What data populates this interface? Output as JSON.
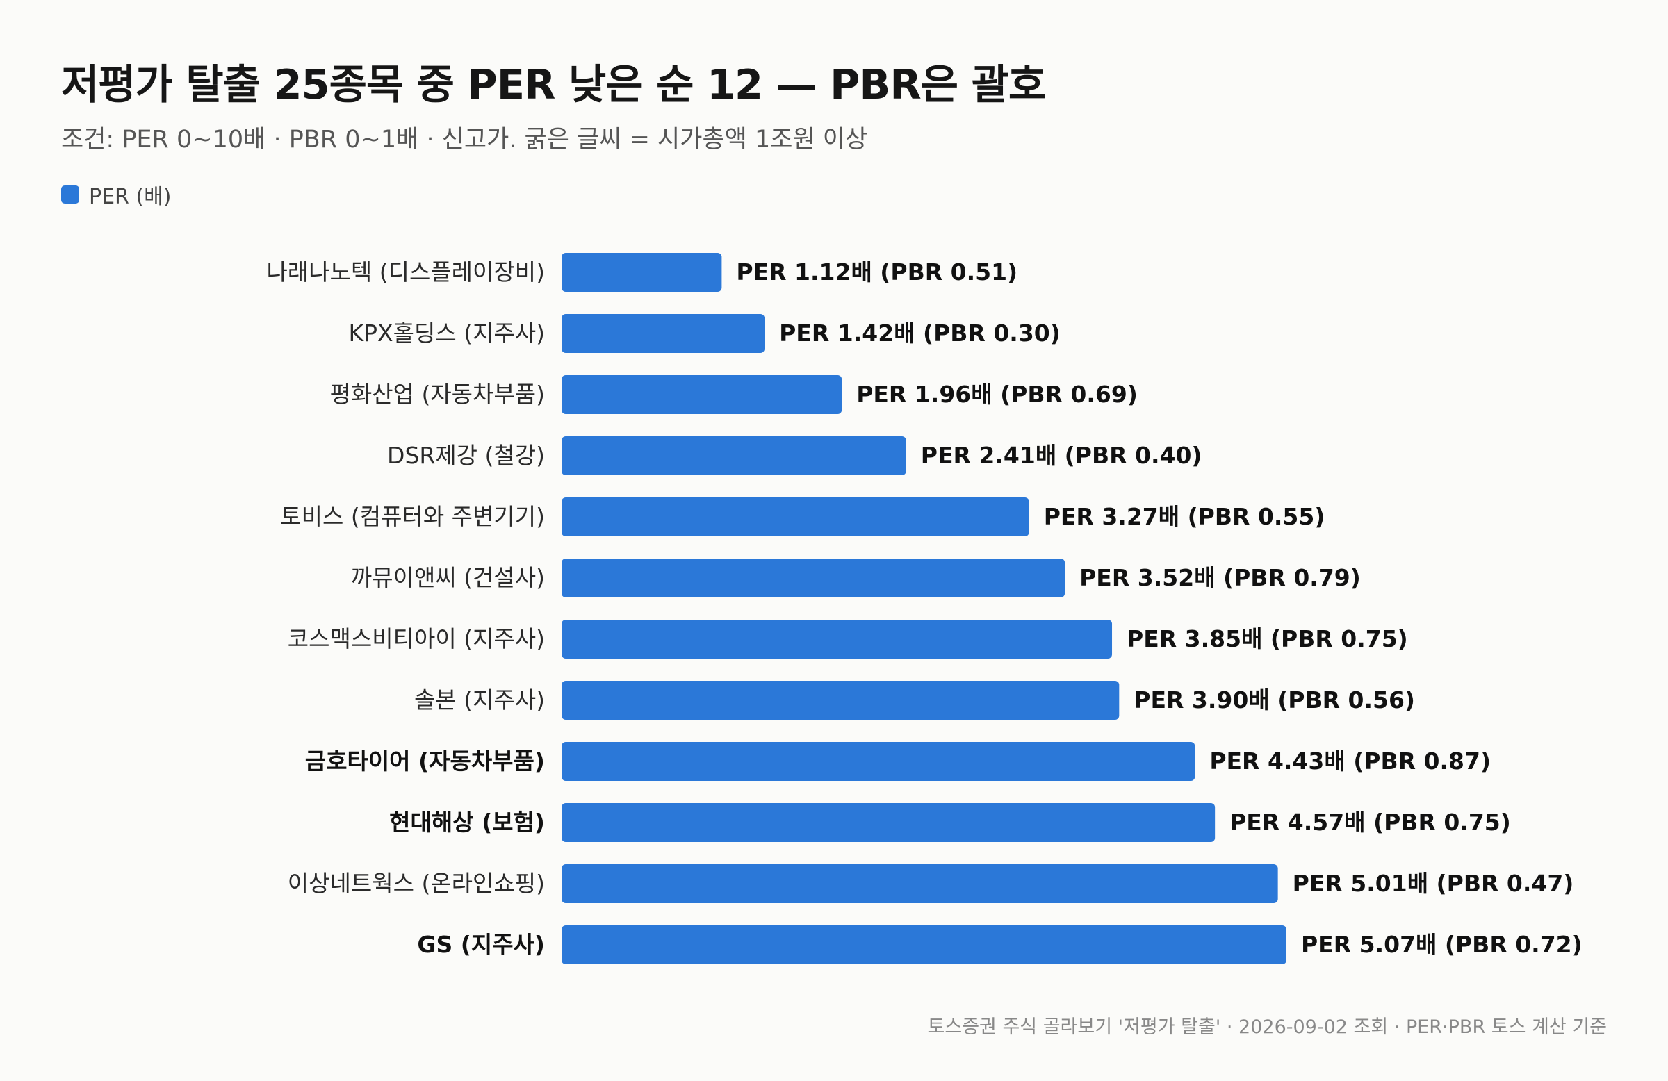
{
  "title": "저평가 탈출 25종목 중 PER 낮은 순 12 — PBR은 괄호",
  "subtitle": "조건: PER 0~10배 · PBR 0~1배 · 신고가. 굵은 글씨 = 시가총액 1조원 이상",
  "legend": {
    "label": "PER (배)",
    "color": "#2b78d8"
  },
  "footer": "토스증권 주식 골라보기 '저평가 탈출' · 2026-09-02 조회 · PER·PBR 토스 계산 기준",
  "chart_data": {
    "type": "bar",
    "orientation": "horizontal",
    "series": [
      {
        "name": "PER (배)",
        "color": "#2b78d8"
      }
    ],
    "items": [
      {
        "label": "나래나노텍 (디스플레이장비)",
        "per": 1.12,
        "pbr": 0.51,
        "bold": false,
        "value_label": "PER 1.12배 (PBR 0.51)"
      },
      {
        "label": "KPX홀딩스 (지주사)",
        "per": 1.42,
        "pbr": 0.3,
        "bold": false,
        "value_label": "PER 1.42배 (PBR 0.30)"
      },
      {
        "label": "평화산업 (자동차부품)",
        "per": 1.96,
        "pbr": 0.69,
        "bold": false,
        "value_label": "PER 1.96배 (PBR 0.69)"
      },
      {
        "label": "DSR제강 (철강)",
        "per": 2.41,
        "pbr": 0.4,
        "bold": false,
        "value_label": "PER 2.41배 (PBR 0.40)"
      },
      {
        "label": "토비스 (컴퓨터와 주변기기)",
        "per": 3.27,
        "pbr": 0.55,
        "bold": false,
        "value_label": "PER 3.27배 (PBR 0.55)"
      },
      {
        "label": "까뮤이앤씨 (건설사)",
        "per": 3.52,
        "pbr": 0.79,
        "bold": false,
        "value_label": "PER 3.52배 (PBR 0.79)"
      },
      {
        "label": "코스맥스비티아이 (지주사)",
        "per": 3.85,
        "pbr": 0.75,
        "bold": false,
        "value_label": "PER 3.85배 (PBR 0.75)"
      },
      {
        "label": "솔본 (지주사)",
        "per": 3.9,
        "pbr": 0.56,
        "bold": false,
        "value_label": "PER 3.90배 (PBR 0.56)"
      },
      {
        "label": "금호타이어 (자동차부품)",
        "per": 4.43,
        "pbr": 0.87,
        "bold": true,
        "value_label": "PER 4.43배 (PBR 0.87)"
      },
      {
        "label": "현대해상 (보험)",
        "per": 4.57,
        "pbr": 0.75,
        "bold": true,
        "value_label": "PER 4.57배 (PBR 0.75)"
      },
      {
        "label": "이상네트웍스 (온라인쇼핑)",
        "per": 5.01,
        "pbr": 0.47,
        "bold": false,
        "value_label": "PER 5.01배 (PBR 0.47)"
      },
      {
        "label": "GS (지주사)",
        "per": 5.07,
        "pbr": 0.72,
        "bold": true,
        "value_label": "PER 5.07배 (PBR 0.72)"
      }
    ],
    "xlim": [
      0,
      5.07
    ],
    "grid": false,
    "legend_position": "top-left"
  }
}
